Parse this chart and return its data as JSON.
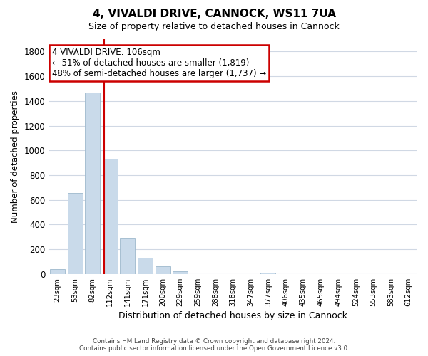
{
  "title": "4, VIVALDI DRIVE, CANNOCK, WS11 7UA",
  "subtitle": "Size of property relative to detached houses in Cannock",
  "xlabel": "Distribution of detached houses by size in Cannock",
  "ylabel": "Number of detached properties",
  "bar_color": "#c9daea",
  "bar_edge_color": "#9db8cc",
  "categories": [
    "23sqm",
    "53sqm",
    "82sqm",
    "112sqm",
    "141sqm",
    "171sqm",
    "200sqm",
    "229sqm",
    "259sqm",
    "288sqm",
    "318sqm",
    "347sqm",
    "377sqm",
    "406sqm",
    "435sqm",
    "465sqm",
    "494sqm",
    "524sqm",
    "553sqm",
    "583sqm",
    "612sqm"
  ],
  "values": [
    40,
    655,
    1470,
    935,
    295,
    130,
    65,
    22,
    0,
    0,
    0,
    0,
    12,
    0,
    0,
    0,
    0,
    0,
    0,
    0,
    0
  ],
  "ylim": [
    0,
    1900
  ],
  "yticks": [
    0,
    200,
    400,
    600,
    800,
    1000,
    1200,
    1400,
    1600,
    1800
  ],
  "vline_x": 2.65,
  "vline_color": "#cc0000",
  "annotation_text": "4 VIVALDI DRIVE: 106sqm\n← 51% of detached houses are smaller (1,819)\n48% of semi-detached houses are larger (1,737) →",
  "annotation_box_color": "#ffffff",
  "annotation_box_edge": "#cc0000",
  "footer_line1": "Contains HM Land Registry data © Crown copyright and database right 2024.",
  "footer_line2": "Contains public sector information licensed under the Open Government Licence v3.0.",
  "background_color": "#ffffff",
  "grid_color": "#d0d8e4"
}
